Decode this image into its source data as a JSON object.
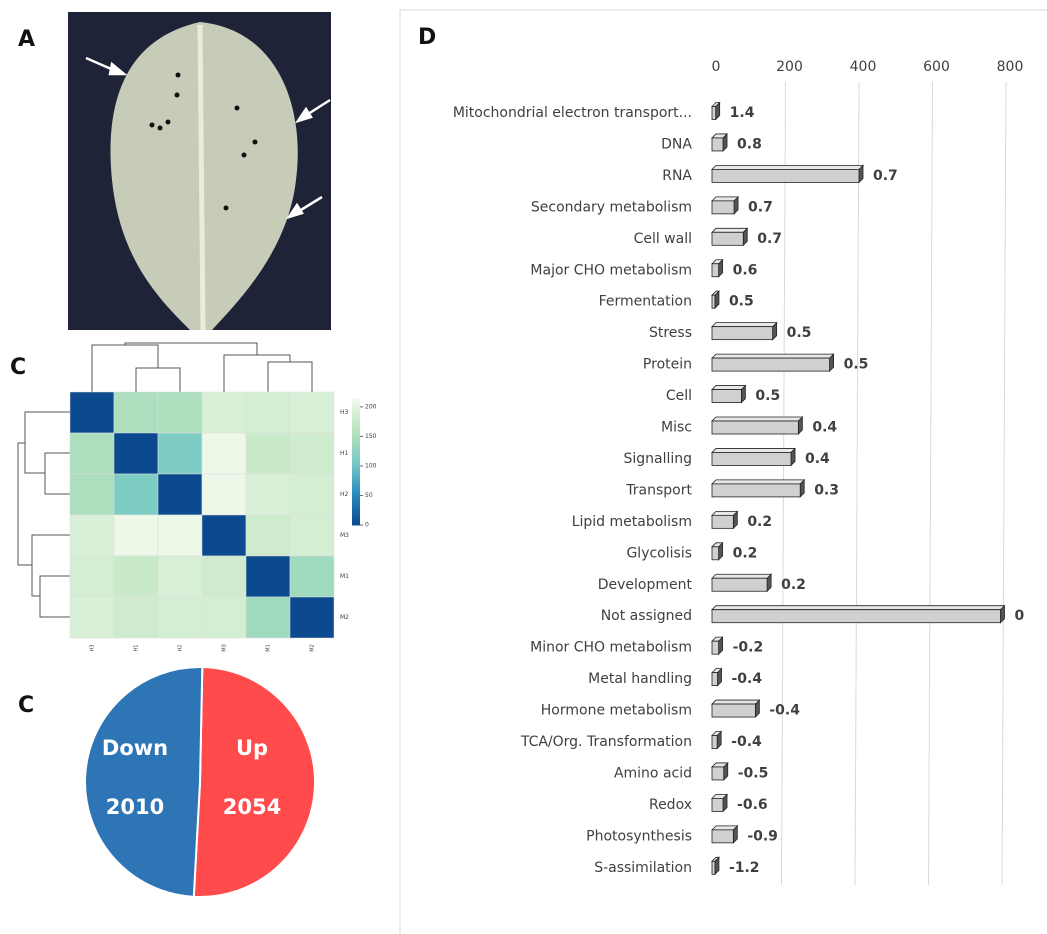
{
  "panel_labels": [
    "A",
    "C",
    "C",
    "D"
  ],
  "chart_data": [
    {
      "type": "heatmap",
      "categories": [
        "H3",
        "H1",
        "H2",
        "M3",
        "M1",
        "M2"
      ],
      "matrix": [
        [
          0,
          150,
          150,
          190,
          185,
          190
        ],
        [
          150,
          0,
          110,
          210,
          175,
          180
        ],
        [
          150,
          110,
          0,
          210,
          190,
          185
        ],
        [
          190,
          210,
          210,
          0,
          180,
          185
        ],
        [
          185,
          175,
          190,
          180,
          0,
          140
        ],
        [
          190,
          180,
          185,
          185,
          140,
          0
        ]
      ],
      "zlim": [
        0,
        215
      ],
      "colorbar_ticks": [
        0,
        50,
        100,
        150,
        200
      ]
    },
    {
      "type": "pie",
      "categories": [
        "Down",
        "Up"
      ],
      "values": [
        2010,
        2054
      ],
      "colors": [
        "#2e75b6",
        "#ff4b4b"
      ]
    },
    {
      "type": "hbar",
      "categories": [
        "Mitochondrial electron transport...",
        "DNA",
        "RNA",
        "Secondary metabolism",
        "Cell wall",
        "Major CHO metabolism",
        "Fermentation",
        "Stress",
        "Protein",
        "Cell",
        "Misc",
        "Signalling",
        "Transport",
        "Lipid metabolism",
        "Glycolisis",
        "Development",
        "Not assigned",
        "Minor CHO metabolism",
        "Metal handling",
        "Hormone metabolism",
        "TCA/Org. Transformation",
        "Amino acid",
        "Redox",
        "Photosynthesis",
        "S-assimilation"
      ],
      "values": [
        10,
        30,
        400,
        60,
        85,
        18,
        8,
        165,
        320,
        80,
        235,
        215,
        240,
        58,
        18,
        150,
        785,
        18,
        15,
        118,
        14,
        32,
        30,
        58,
        8
      ],
      "bar_labels": [
        1.4,
        0.8,
        0.7,
        0.7,
        0.7,
        0.6,
        0.5,
        0.5,
        0.5,
        0.5,
        0.4,
        0.4,
        0.3,
        0.2,
        0.2,
        0.2,
        0,
        -0.2,
        -0.4,
        -0.4,
        -0.4,
        -0.5,
        -0.6,
        -0.9,
        -1.2
      ],
      "color": "#d0d0d0",
      "xlim": [
        0,
        800
      ],
      "xticks": [
        0,
        200,
        400,
        600,
        800
      ],
      "grid": true
    }
  ]
}
